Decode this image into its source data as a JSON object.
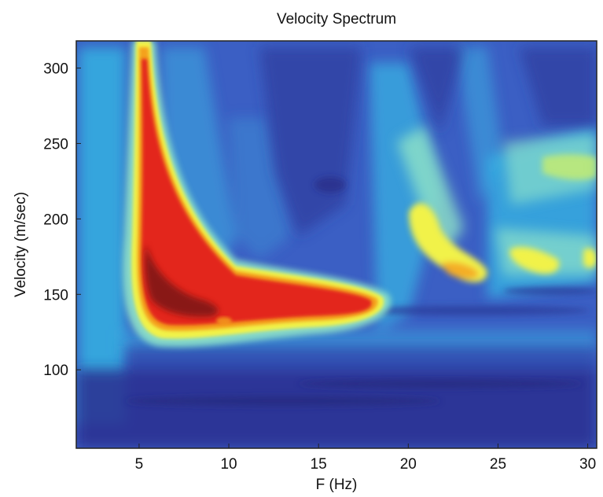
{
  "chart_data": {
    "type": "heatmap",
    "title": "Velocity Spectrum",
    "xlabel": "F (Hz)",
    "ylabel": "Velocity (m/sec)",
    "xlim": [
      1.5,
      30.5
    ],
    "ylim": [
      48,
      318
    ],
    "x_ticks": [
      5,
      10,
      15,
      20,
      25,
      30
    ],
    "y_ticks": [
      100,
      150,
      200,
      250,
      300
    ],
    "grid": false,
    "colormap": [
      "#2a2f8f",
      "#3c63c9",
      "#37b9e6",
      "#8fe3c7",
      "#f1f24a",
      "#f4a21f",
      "#e3261d",
      "#7a1414"
    ],
    "features": [
      {
        "name": "main dispersion ridge",
        "peak_frequency_hz": 7.5,
        "peak_velocity_m_s": 142,
        "level": "max"
      },
      {
        "name": "fundamental branch",
        "frequency_range_hz": [
          5,
          18.5
        ],
        "velocity_range_m_s": [
          140,
          318
        ],
        "level": "high"
      },
      {
        "name": "secondary ridge",
        "frequency_range_hz": [
          20,
          24
        ],
        "velocity_range_m_s": [
          160,
          200
        ],
        "level": "medium-high"
      },
      {
        "name": "secondary ridge",
        "frequency_range_hz": [
          25.5,
          30
        ],
        "velocity_range_m_s": [
          165,
          175
        ],
        "level": "medium-high"
      }
    ]
  }
}
